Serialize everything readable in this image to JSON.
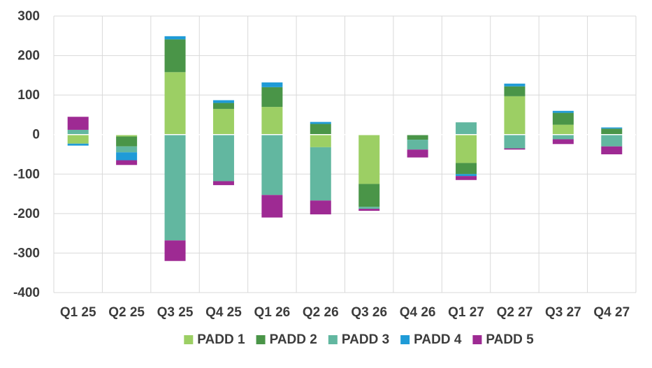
{
  "chart_data": {
    "type": "bar",
    "stacked": true,
    "title": "",
    "xlabel": "",
    "ylabel": "",
    "ylim": [
      -400,
      300
    ],
    "y_ticks": [
      -400,
      -300,
      -200,
      -100,
      0,
      100,
      200,
      300
    ],
    "grid": true,
    "legend_position": "bottom",
    "categories": [
      "Q1 25",
      "Q2 25",
      "Q3 25",
      "Q4 25",
      "Q1 26",
      "Q2 26",
      "Q3 26",
      "Q4 26",
      "Q1 27",
      "Q2 27",
      "Q3 27",
      "Q4 27"
    ],
    "series": [
      {
        "name": "PADD 1",
        "color": "#9ccf64",
        "values": [
          -23,
          -5,
          158,
          65,
          70,
          -32,
          -125,
          0,
          -72,
          97,
          25,
          0
        ]
      },
      {
        "name": "PADD 2",
        "color": "#4a9548",
        "values": [
          0,
          -25,
          83,
          15,
          50,
          27,
          -58,
          -13,
          -28,
          25,
          30,
          15
        ]
      },
      {
        "name": "PADD 3",
        "color": "#62b7a0",
        "values": [
          12,
          -15,
          -268,
          -118,
          -153,
          -135,
          -5,
          -25,
          31,
          -35,
          -12,
          -30
        ]
      },
      {
        "name": "PADD 4",
        "color": "#1f9bd7",
        "values": [
          -5,
          -20,
          8,
          7,
          12,
          5,
          0,
          0,
          -5,
          7,
          5,
          3
        ]
      },
      {
        "name": "PADD 5",
        "color": "#9e2a93",
        "values": [
          33,
          -12,
          -52,
          -10,
          -57,
          -35,
          -5,
          -20,
          -10,
          -3,
          -12,
          -20
        ]
      }
    ]
  }
}
